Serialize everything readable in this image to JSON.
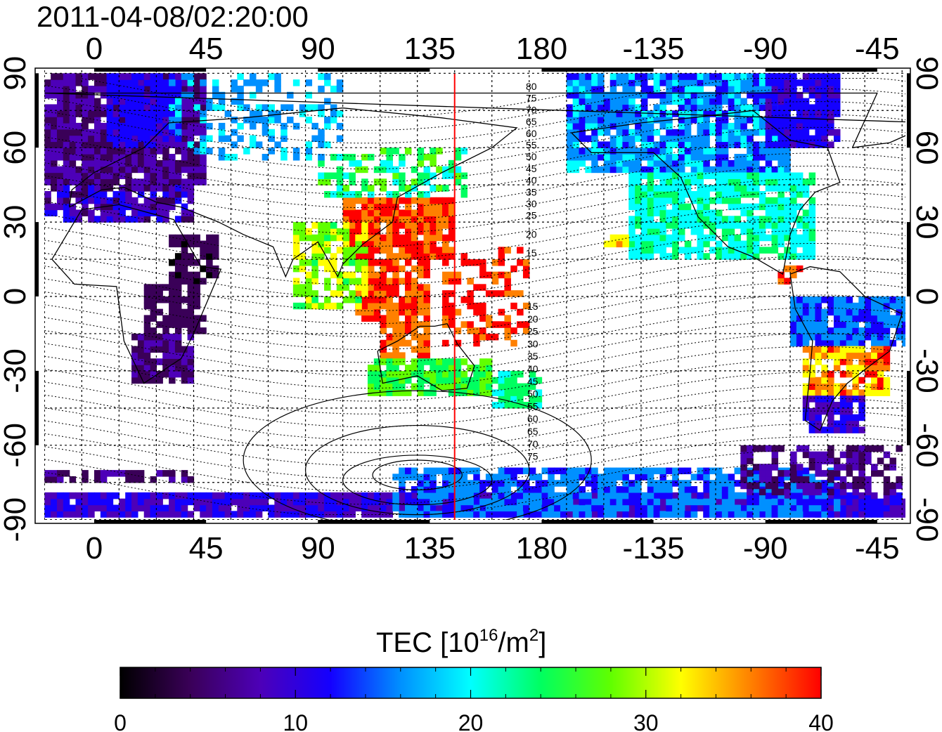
{
  "title": "2011-04-08/02:20:00",
  "map": {
    "lon_ticks_top": [
      "0",
      "45",
      "90",
      "135",
      "180",
      "-135",
      "-90",
      "-45"
    ],
    "lon_ticks_bottom": [
      "0",
      "45",
      "90",
      "135",
      "180",
      "-135",
      "-90",
      "-45"
    ],
    "lat_ticks_left": [
      "90",
      "60",
      "30",
      "0",
      "-30",
      "-60",
      "-90"
    ],
    "lat_ticks_right": [
      "90",
      "60",
      "30",
      "0",
      "-30",
      "-60",
      "-90"
    ],
    "lon_range": [
      -20,
      330
    ],
    "lat_range": [
      -90,
      90
    ],
    "graticule_lon_step": 15,
    "graticule_lat_step": 15,
    "meridian_marker_lon": 145,
    "marker_color": "#ff0000",
    "contour_labels_north": [
      "80",
      "75",
      "70",
      "65",
      "60",
      "55",
      "50",
      "45",
      "40",
      "35",
      "30",
      "25",
      "20",
      "15"
    ],
    "contour_labels_south": [
      "15",
      "20",
      "25",
      "30",
      "35",
      "40",
      "45",
      "50",
      "55",
      "60",
      "65",
      "70",
      "75"
    ]
  },
  "colorbar": {
    "label_main": "TEC  [10",
    "label_sup": "16",
    "label_tail": "/m",
    "label_sup2": "2",
    "label_end": "]",
    "ticks": [
      "0",
      "10",
      "20",
      "30",
      "40"
    ],
    "range": [
      0,
      40
    ],
    "colormap": [
      "#000000",
      "#3a0058",
      "#4d00b8",
      "#1400ff",
      "#0090ff",
      "#00ffff",
      "#00ff60",
      "#60ff00",
      "#ffff00",
      "#ff8000",
      "#ff0000"
    ]
  }
}
